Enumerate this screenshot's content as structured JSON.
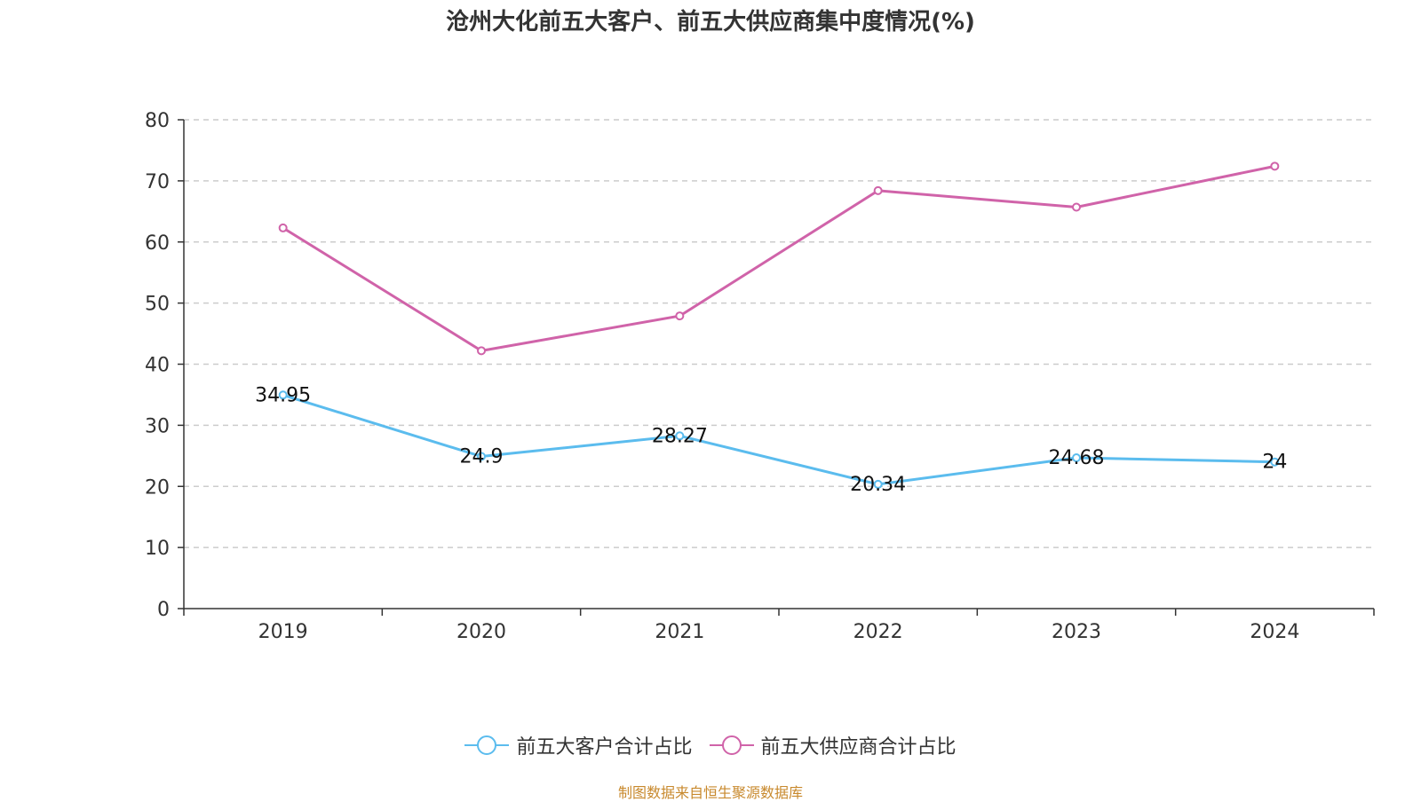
{
  "chart_data": {
    "type": "line",
    "title": "沧州大化前五大客户、前五大供应商集中度情况(%)",
    "categories": [
      "2019",
      "2020",
      "2021",
      "2022",
      "2023",
      "2024"
    ],
    "series": [
      {
        "name": "前五大客户合计占比",
        "color": "#5bbcee",
        "values": [
          34.95,
          24.9,
          28.27,
          20.34,
          24.68,
          24
        ],
        "labels": [
          "34.95",
          "24.9",
          "28.27",
          "20.34",
          "24.68",
          "24"
        ],
        "show_labels": true
      },
      {
        "name": "前五大供应商合计占比",
        "color": "#d063a9",
        "values": [
          62.3,
          42.2,
          47.9,
          68.4,
          65.7,
          72.4
        ],
        "show_labels": false
      }
    ],
    "ylim": [
      0,
      80
    ],
    "yticks": [
      "0",
      "10",
      "20",
      "30",
      "40",
      "50",
      "60",
      "70",
      "80"
    ],
    "grid": true,
    "legend_position": "bottom-center"
  },
  "source_text": "制图数据来自恒生聚源数据库"
}
